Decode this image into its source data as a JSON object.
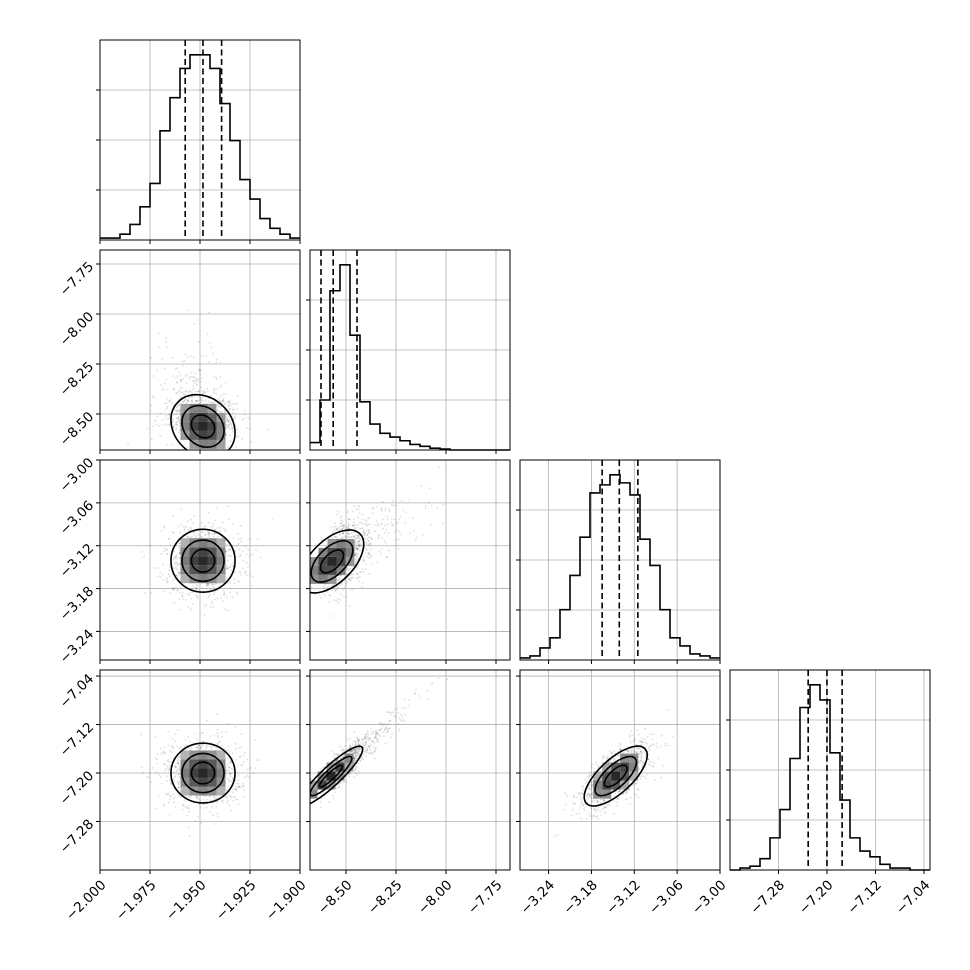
{
  "chart_data": {
    "type": "corner",
    "parameters": [
      {
        "median": -1.9485,
        "q16": -1.9574,
        "q84": -1.9392,
        "range": [
          -2.0,
          -1.9
        ],
        "ticks": [
          -2.0,
          -1.975,
          -1.95,
          -1.925,
          -1.9
        ],
        "tick_labels": [
          "−2.000",
          "−1.975",
          "−1.950",
          "−1.925",
          "−1.900"
        ],
        "histogram": {
          "bin_edges": [
            -2.0,
            -1.995,
            -1.99,
            -1.985,
            -1.98,
            -1.975,
            -1.97,
            -1.965,
            -1.96,
            -1.955,
            -1.95,
            -1.945,
            -1.94,
            -1.935,
            -1.93,
            -1.925,
            -1.92,
            -1.915,
            -1.91,
            -1.905,
            -1.9
          ],
          "counts": [
            1,
            1,
            3,
            8,
            17,
            29,
            56,
            73,
            88,
            95,
            95,
            88,
            70,
            51,
            31,
            21,
            11,
            6,
            3,
            1
          ]
        }
      },
      {
        "median": -8.564,
        "q16": -8.625,
        "q84": -8.445,
        "range": [
          -8.68,
          -7.68
        ],
        "ticks": [
          -8.5,
          -8.25,
          -8.0,
          -7.75
        ],
        "tick_labels": [
          "−8.50",
          "−8.25",
          "−8.00",
          "−7.75"
        ],
        "histogram": {
          "bin_edges": [
            -8.68,
            -8.63,
            -8.58,
            -8.53,
            -8.48,
            -8.43,
            -8.38,
            -8.33,
            -8.28,
            -8.23,
            -8.18,
            -8.13,
            -8.08,
            -8.03,
            -7.98,
            -7.93,
            -7.88,
            -7.83,
            -7.78,
            -7.73,
            -7.68
          ],
          "counts": [
            4,
            27,
            86,
            100,
            62,
            26,
            14,
            9,
            7,
            5,
            3,
            2,
            1,
            0.5,
            0,
            0,
            0,
            0,
            0,
            0
          ]
        }
      },
      {
        "median": -3.141,
        "q16": -3.165,
        "q84": -3.115,
        "range": [
          -3.28,
          -3.0
        ],
        "ticks": [
          -3.24,
          -3.18,
          -3.12,
          -3.06,
          -3.0
        ],
        "tick_labels": [
          "−3.24",
          "−3.18",
          "−3.12",
          "−3.06",
          "−3.00"
        ],
        "histogram": {
          "bin_edges": [
            -3.28,
            -3.266,
            -3.252,
            -3.238,
            -3.224,
            -3.21,
            -3.196,
            -3.182,
            -3.168,
            -3.154,
            -3.14,
            -3.126,
            -3.112,
            -3.098,
            -3.084,
            -3.07,
            -3.056,
            -3.042,
            -3.028,
            -3.014,
            -3.0
          ],
          "counts": [
            1,
            2,
            6,
            11,
            25,
            42,
            61,
            83,
            87,
            92,
            88,
            82,
            60,
            47,
            25,
            11,
            7,
            3,
            2,
            1
          ]
        }
      },
      {
        "median": -7.2,
        "q16": -7.231,
        "q84": -7.175,
        "range": [
          -7.36,
          -7.03
        ],
        "ticks": [
          -7.28,
          -7.2,
          -7.12,
          -7.04
        ],
        "tick_labels": [
          "−7.28",
          "−7.20",
          "−7.12",
          "−7.04"
        ],
        "histogram": {
          "bin_edges": [
            -7.36,
            -7.3435,
            -7.327,
            -7.3105,
            -7.294,
            -7.2775,
            -7.261,
            -7.2445,
            -7.228,
            -7.2115,
            -7.195,
            -7.1785,
            -7.162,
            -7.1455,
            -7.129,
            -7.1125,
            -7.096,
            -7.0795,
            -7.063,
            -7.0465,
            -7.03
          ],
          "counts": [
            0,
            1,
            2,
            6,
            17,
            32,
            59,
            86,
            98,
            90,
            62,
            37,
            17,
            10,
            7,
            3,
            1,
            1,
            0,
            0
          ]
        }
      }
    ],
    "pairs": [
      {
        "x": 0,
        "y": 1,
        "corr": -0.2,
        "mode": [
          -1.9485,
          -8.562
        ]
      },
      {
        "x": 0,
        "y": 2,
        "corr": 0.0,
        "mode": [
          -1.9485,
          -3.141
        ]
      },
      {
        "x": 1,
        "y": 2,
        "corr": 0.55,
        "mode": [
          -8.57,
          -3.142
        ]
      },
      {
        "x": 0,
        "y": 3,
        "corr": 0.0,
        "mode": [
          -1.9485,
          -7.2
        ]
      },
      {
        "x": 1,
        "y": 3,
        "corr": 0.9,
        "mode": [
          -8.575,
          -7.205
        ]
      },
      {
        "x": 2,
        "y": 3,
        "corr": 0.7,
        "mode": [
          -3.146,
          -7.205
        ]
      }
    ],
    "quantile_lines": [
      0.16,
      0.5,
      0.84
    ],
    "grid": true,
    "colors": {
      "ink": "#000000",
      "grid": "#b0b0b0",
      "scatter": "#000000"
    }
  }
}
